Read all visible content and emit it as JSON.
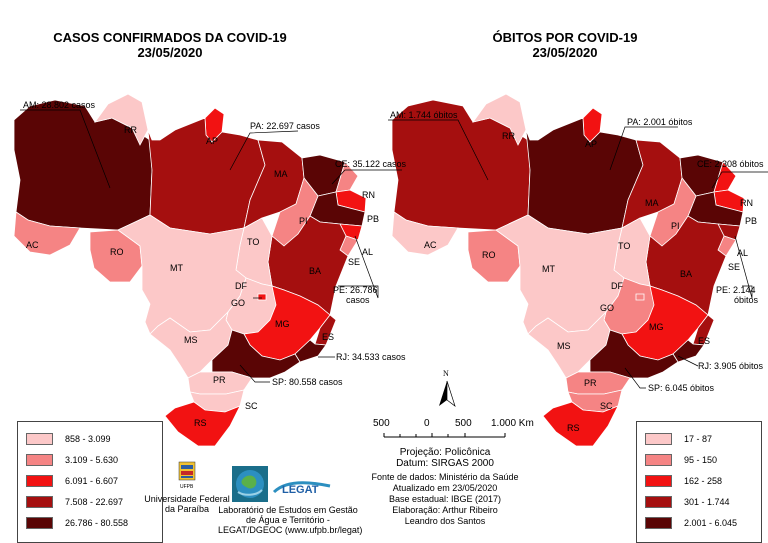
{
  "map1": {
    "title": "CASOS CONFIRMADOS DA COVID-19",
    "date": "23/05/2020",
    "callouts": {
      "am": "AM: 28.802 casos",
      "pa": "PA: 22.697 casos",
      "ce": "CE: 35.122 casos",
      "pe1": "PE: 26.786",
      "pe2": "casos",
      "rj": "RJ: 34.533 casos",
      "sp": "SP: 80.558 casos"
    },
    "legend": [
      {
        "label": "858 - 3.099",
        "color": "#fcc8c8"
      },
      {
        "label": "3.109 - 5.630",
        "color": "#f58484"
      },
      {
        "label": "6.091 - 6.607",
        "color": "#f21212"
      },
      {
        "label": "7.508 - 22.697",
        "color": "#a50f0f"
      },
      {
        "label": "26.786 - 80.558",
        "color": "#5a0505"
      }
    ]
  },
  "map2": {
    "title": "ÓBITOS POR COVID-19",
    "date": "23/05/2020",
    "callouts": {
      "am": "AM: 1.744 óbitos",
      "pa": "PA: 2.001 óbitos",
      "ce": "CE: 2.308 óbitos",
      "pe1": "PE: 2.144",
      "pe2": "óbitos",
      "rj": "RJ: 3.905 óbitos",
      "sp": "SP: 6.045 óbitos"
    },
    "legend": [
      {
        "label": "17 - 87",
        "color": "#fcc8c8"
      },
      {
        "label": "95 - 150",
        "color": "#f58484"
      },
      {
        "label": "162 - 258",
        "color": "#f21212"
      },
      {
        "label": "301 - 1.744",
        "color": "#a50f0f"
      },
      {
        "label": "2.001 - 6.045",
        "color": "#5a0505"
      }
    ]
  },
  "states": {
    "rr": "RR",
    "ap": "AP",
    "am": "AM",
    "pa": "PA",
    "ma": "MA",
    "ce": "CE",
    "rn": "RN",
    "pb": "PB",
    "pi": "PI",
    "to": "TO",
    "ac": "AC",
    "ro": "RO",
    "mt": "MT",
    "ba": "BA",
    "al": "AL",
    "se": "SE",
    "df": "DF",
    "go": "GO",
    "mg": "MG",
    "es": "ES",
    "ms": "MS",
    "sp": "SP",
    "pr": "PR",
    "sc": "SC",
    "rs": "RS",
    "rj": "RJ",
    "pe": "PE"
  },
  "fills": {
    "map1": {
      "rr": "#fcc8c8",
      "ap": "#f21212",
      "am": "#5a0505",
      "pa": "#a50f0f",
      "ma": "#a50f0f",
      "ce": "#5a0505",
      "rn": "#f58484",
      "pb": "#f21212",
      "pi": "#f58484",
      "pe": "#5a0505",
      "al": "#f21212",
      "se": "#f58484",
      "ba": "#a50f0f",
      "to": "#fcc8c8",
      "ac": "#f58484",
      "ro": "#f58484",
      "mt": "#fcc8c8",
      "go": "#fcc8c8",
      "df": "#f21212",
      "mg": "#f21212",
      "es": "#a50f0f",
      "rj": "#5a0505",
      "sp": "#5a0505",
      "ms": "#fcc8c8",
      "pr": "#fcc8c8",
      "sc": "#fcc8c8",
      "rs": "#f21212"
    },
    "map2": {
      "rr": "#fcc8c8",
      "ap": "#f21212",
      "am": "#a50f0f",
      "pa": "#5a0505",
      "ma": "#a50f0f",
      "ce": "#5a0505",
      "rn": "#f21212",
      "pb": "#f21212",
      "pi": "#f58484",
      "pe": "#5a0505",
      "al": "#a50f0f",
      "se": "#f58484",
      "ba": "#a50f0f",
      "to": "#fcc8c8",
      "ac": "#fcc8c8",
      "ro": "#f58484",
      "mt": "#fcc8c8",
      "go": "#f58484",
      "df": "#f58484",
      "mg": "#f21212",
      "es": "#a50f0f",
      "rj": "#5a0505",
      "sp": "#5a0505",
      "ms": "#fcc8c8",
      "pr": "#f58484",
      "sc": "#f58484",
      "rs": "#f21212"
    }
  },
  "north_arrow": "N",
  "scale": {
    "l0": "500",
    "l1": "0",
    "l2": "500",
    "l3": "1.000 Km"
  },
  "info": {
    "line1": "Projeção: Policônica",
    "line2": "Datum: SIRGAS 2000",
    "line3": "Fonte de dados: Ministério da Saúde",
    "line4": "Atualizado em 23/05/2020",
    "line5": "Base estadual: IBGE (2017)",
    "line6": "Elaboração: Arthur Ribeiro",
    "line7": "Leandro dos Santos"
  },
  "logos": {
    "ufpb_tag": "UFPB",
    "ufpb_name1": "Universidade Federal",
    "ufpb_name2": "da Paraíba",
    "legat_text": "LEGAT",
    "lab1": "Laboratório de Estudos em Gestão",
    "lab2": "de Água e Território -",
    "lab3": "LEGAT/DGEOC (www.ufpb.br/legat)"
  }
}
